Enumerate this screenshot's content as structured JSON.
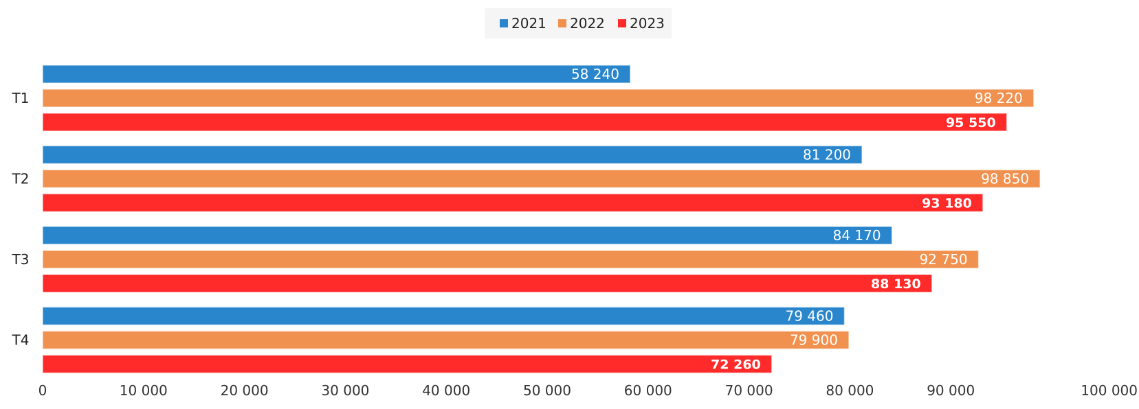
{
  "chart_data": {
    "type": "bar",
    "orientation": "horizontal",
    "categories": [
      "T1",
      "T2",
      "T3",
      "T4"
    ],
    "series": [
      {
        "name": "2021",
        "color": "#2986cc",
        "values": [
          58240,
          81200,
          84170,
          79460
        ],
        "labels": [
          "58 240",
          "81 200",
          "84 170",
          "79 460"
        ]
      },
      {
        "name": "2022",
        "color": "#f0914f",
        "values": [
          98220,
          98850,
          92750,
          79900
        ],
        "labels": [
          "98 220",
          "98 850",
          "92 750",
          "79 900"
        ]
      },
      {
        "name": "2023",
        "color": "#ff2b2b",
        "values": [
          95550,
          93180,
          88130,
          72260
        ],
        "labels": [
          "95 550",
          "93 180",
          "88 130",
          "72 260"
        ]
      }
    ],
    "xlim": [
      0,
      100000
    ],
    "x_ticks": [
      0,
      10000,
      20000,
      30000,
      40000,
      50000,
      60000,
      70000,
      80000,
      90000,
      100000
    ],
    "x_tick_labels": [
      "0",
      "10 000",
      "20 000",
      "30 000",
      "40 000",
      "50 000",
      "60 000",
      "70 000",
      "80 000",
      "90 000",
      "100 000"
    ],
    "title": "",
    "xlabel": "",
    "ylabel": "",
    "grid": false,
    "legend_position": "top-center"
  }
}
